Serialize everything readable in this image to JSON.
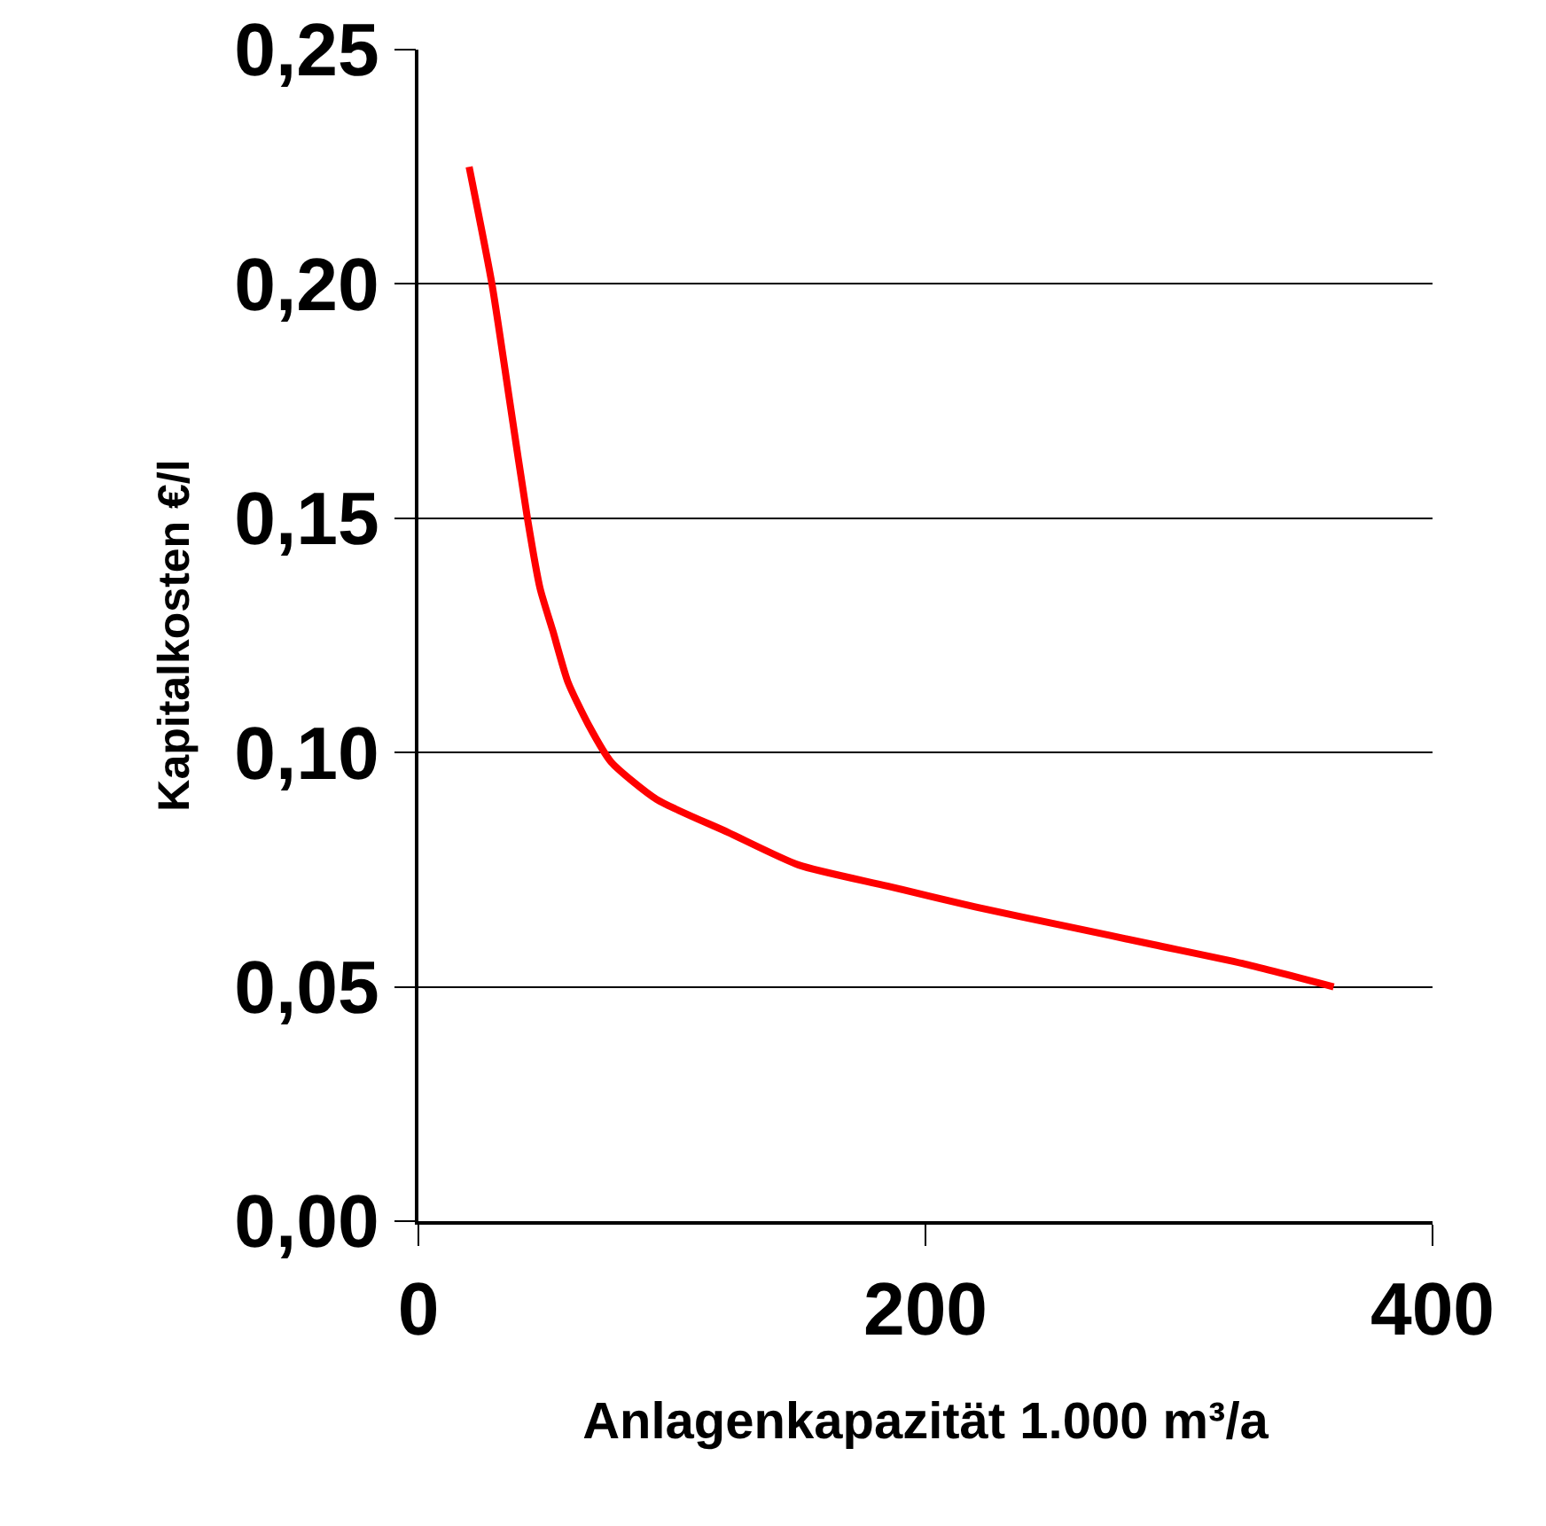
{
  "chart_data": {
    "type": "line",
    "xlabel": "Anlagenkapazität 1.000 m³/a",
    "ylabel": "Kapitalkosten €/l",
    "series": [
      {
        "color": "#ff0000",
        "x": [
          20,
          29,
          36,
          43,
          48,
          53,
          59,
          67,
          76,
          94,
          122,
          150,
          185,
          220,
          255,
          290,
          325,
          361
        ],
        "values": [
          0.225,
          0.2,
          0.175,
          0.15,
          0.135,
          0.126,
          0.115,
          0.106,
          0.098,
          0.09,
          0.083,
          0.076,
          0.0715,
          0.067,
          0.063,
          0.059,
          0.055,
          0.05
        ]
      }
    ],
    "xlim": [
      0,
      400
    ],
    "xticks": [
      0,
      200,
      400
    ],
    "ylim": [
      0,
      0.25
    ],
    "yticks": [
      {
        "value": 0,
        "label": "0,00"
      },
      {
        "value": 0.05,
        "label": "0,05"
      },
      {
        "value": 0.1,
        "label": "0,10"
      },
      {
        "value": 0.15,
        "label": "0,15"
      },
      {
        "value": 0.2,
        "label": "0,20"
      },
      {
        "value": 0.25,
        "label": "0,25"
      }
    ],
    "grid": "y",
    "marker": "none",
    "line_style": "solid"
  }
}
